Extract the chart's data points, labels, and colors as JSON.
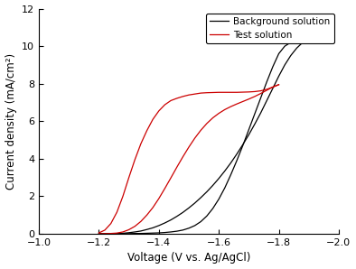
{
  "title": "",
  "xlabel": "Voltage (V vs. Ag/AgCl)",
  "ylabel": "Current density (mA/cm²)",
  "xlim": [
    -1.0,
    -2.0
  ],
  "ylim": [
    0,
    12
  ],
  "xticks": [
    -1.0,
    -1.2,
    -1.4,
    -1.6,
    -1.8,
    -2.0
  ],
  "yticks": [
    0,
    2,
    4,
    6,
    8,
    10,
    12
  ],
  "background_color": "#ffffff",
  "legend": [
    {
      "label": "Background solution",
      "color": "#000000"
    },
    {
      "label": "Test solution",
      "color": "#cc0000"
    }
  ],
  "black_forward_x": [
    -1.2,
    -1.22,
    -1.24,
    -1.26,
    -1.28,
    -1.3,
    -1.32,
    -1.34,
    -1.36,
    -1.38,
    -1.4,
    -1.42,
    -1.44,
    -1.46,
    -1.48,
    -1.5,
    -1.52,
    -1.54,
    -1.56,
    -1.58,
    -1.6,
    -1.62,
    -1.64,
    -1.66,
    -1.68,
    -1.7,
    -1.72,
    -1.74,
    -1.76,
    -1.78,
    -1.8,
    -1.82,
    -1.84,
    -1.86,
    -1.88,
    -1.9
  ],
  "black_forward_y": [
    0.01,
    0.01,
    0.01,
    0.01,
    0.01,
    0.01,
    0.02,
    0.02,
    0.03,
    0.04,
    0.05,
    0.07,
    0.1,
    0.14,
    0.2,
    0.3,
    0.44,
    0.65,
    0.95,
    1.35,
    1.85,
    2.45,
    3.15,
    3.9,
    4.7,
    5.55,
    6.4,
    7.25,
    8.1,
    8.9,
    9.6,
    10.0,
    10.2,
    10.25,
    10.28,
    10.3
  ],
  "black_backward_x": [
    -1.9,
    -1.88,
    -1.86,
    -1.84,
    -1.82,
    -1.8,
    -1.78,
    -1.76,
    -1.74,
    -1.72,
    -1.7,
    -1.68,
    -1.66,
    -1.64,
    -1.62,
    -1.6,
    -1.58,
    -1.56,
    -1.54,
    -1.52,
    -1.5,
    -1.48,
    -1.46,
    -1.44,
    -1.42,
    -1.4,
    -1.38,
    -1.36,
    -1.34,
    -1.32,
    -1.3,
    -1.28,
    -1.26,
    -1.24,
    -1.22,
    -1.2
  ],
  "black_backward_y": [
    10.3,
    10.2,
    9.9,
    9.5,
    9.0,
    8.4,
    7.75,
    7.1,
    6.45,
    5.85,
    5.28,
    4.75,
    4.25,
    3.78,
    3.35,
    2.95,
    2.58,
    2.24,
    1.93,
    1.64,
    1.38,
    1.14,
    0.93,
    0.74,
    0.58,
    0.44,
    0.32,
    0.23,
    0.15,
    0.1,
    0.06,
    0.03,
    0.02,
    0.01,
    0.01,
    0.0
  ],
  "red_forward_x": [
    -1.2,
    -1.22,
    -1.24,
    -1.26,
    -1.28,
    -1.3,
    -1.32,
    -1.34,
    -1.36,
    -1.38,
    -1.4,
    -1.42,
    -1.44,
    -1.46,
    -1.48,
    -1.5,
    -1.52,
    -1.54,
    -1.56,
    -1.58,
    -1.6,
    -1.62,
    -1.64,
    -1.66,
    -1.68,
    -1.7,
    -1.72,
    -1.74,
    -1.76,
    -1.78,
    -1.8
  ],
  "red_forward_y": [
    0.05,
    0.2,
    0.55,
    1.15,
    2.0,
    3.0,
    3.95,
    4.8,
    5.5,
    6.1,
    6.55,
    6.88,
    7.1,
    7.22,
    7.32,
    7.4,
    7.45,
    7.5,
    7.52,
    7.53,
    7.54,
    7.54,
    7.54,
    7.54,
    7.55,
    7.56,
    7.58,
    7.62,
    7.7,
    7.82,
    7.95
  ],
  "red_backward_x": [
    -1.8,
    -1.78,
    -1.76,
    -1.74,
    -1.72,
    -1.7,
    -1.68,
    -1.66,
    -1.64,
    -1.62,
    -1.6,
    -1.58,
    -1.56,
    -1.54,
    -1.52,
    -1.5,
    -1.48,
    -1.46,
    -1.44,
    -1.42,
    -1.4,
    -1.38,
    -1.36,
    -1.34,
    -1.32,
    -1.3,
    -1.28,
    -1.26,
    -1.24,
    -1.22,
    -1.2
  ],
  "red_backward_y": [
    7.95,
    7.82,
    7.65,
    7.48,
    7.32,
    7.18,
    7.05,
    6.92,
    6.78,
    6.62,
    6.42,
    6.18,
    5.88,
    5.52,
    5.1,
    4.62,
    4.1,
    3.55,
    2.98,
    2.42,
    1.88,
    1.4,
    1.0,
    0.66,
    0.4,
    0.22,
    0.1,
    0.04,
    0.02,
    0.01,
    0.0
  ],
  "figsize": [
    3.94,
    2.98
  ],
  "dpi": 100
}
